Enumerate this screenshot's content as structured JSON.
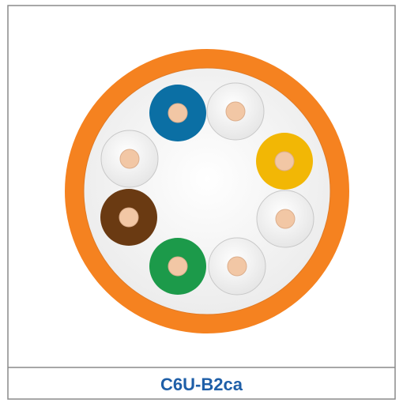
{
  "caption": {
    "label": "C6U-B2ca"
  }
}
